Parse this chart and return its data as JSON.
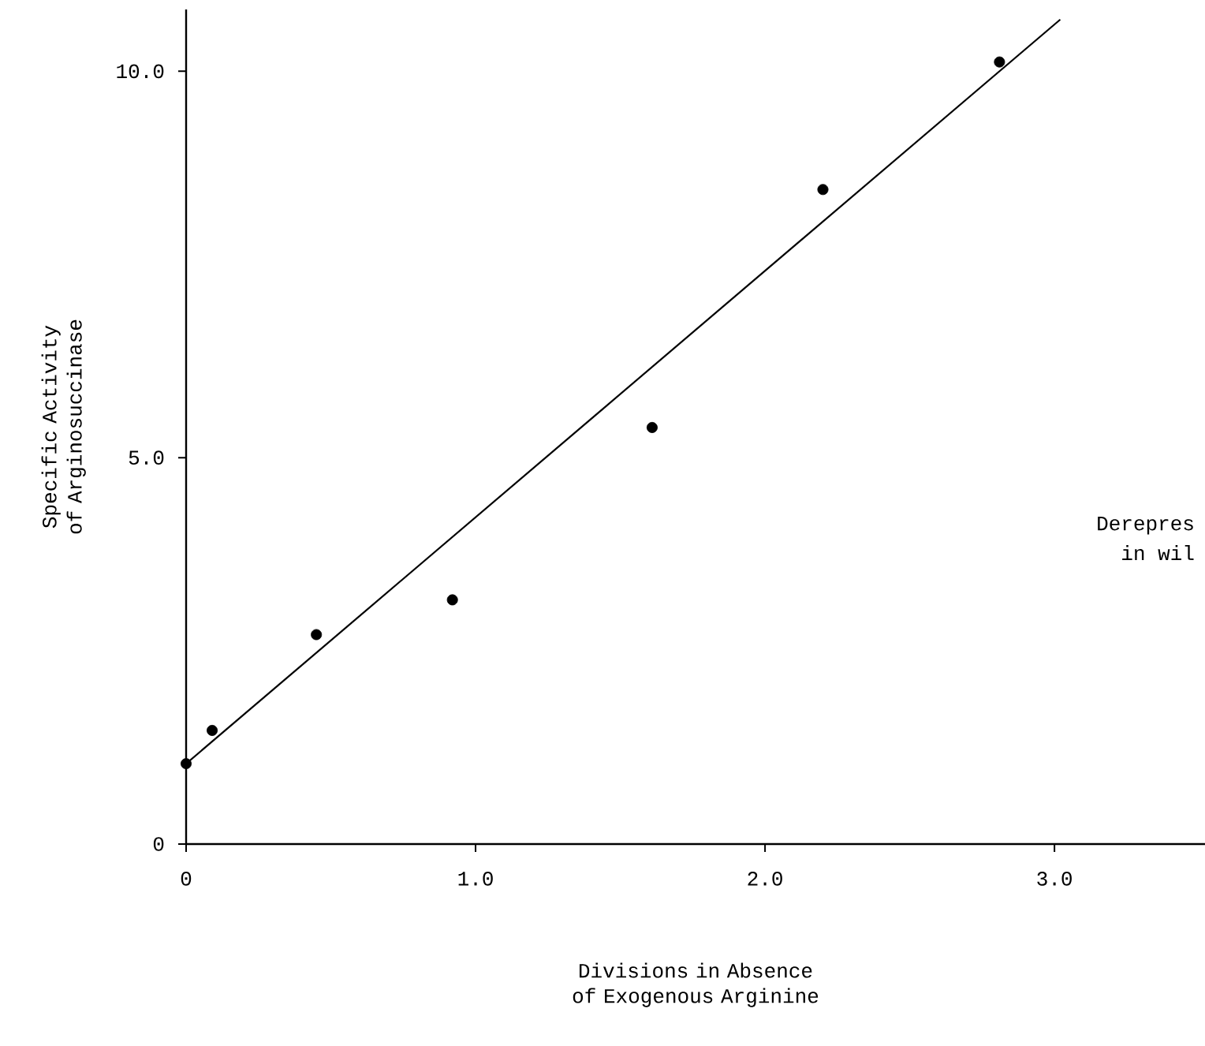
{
  "chart_data": {
    "type": "scatter",
    "xlabel": "Divisions in Absence of Exogenous Arginine",
    "ylabel": "Specific Activity of Arginosuccinase",
    "grid": false,
    "xlim": [
      0,
      3.52
    ],
    "ylim": [
      0,
      10.8
    ],
    "xticks": [
      0,
      {
        "value": 1.0,
        "label": "1.0"
      },
      {
        "value": 2.0,
        "label": "2.0"
      },
      {
        "value": 3.0,
        "label": "3.0"
      }
    ],
    "yticks": [
      0,
      {
        "value": 5.0,
        "label": "5.0"
      },
      {
        "value": 10.0,
        "label": "10.0"
      }
    ],
    "series": [
      {
        "marker": "circle",
        "color": "#000000",
        "x": [
          0,
          0.09,
          0.45,
          0.92,
          1.61,
          2.2,
          2.81
        ],
        "values": [
          1.04,
          1.47,
          2.71,
          3.16,
          5.39,
          8.47,
          10.12
        ]
      },
      {
        "type": "line",
        "color": "#000000",
        "marker": "none",
        "x": [
          0,
          3.02
        ],
        "values": [
          1.04,
          10.67
        ]
      }
    ],
    "annotations": [
      "Derepres",
      "in wil"
    ]
  }
}
